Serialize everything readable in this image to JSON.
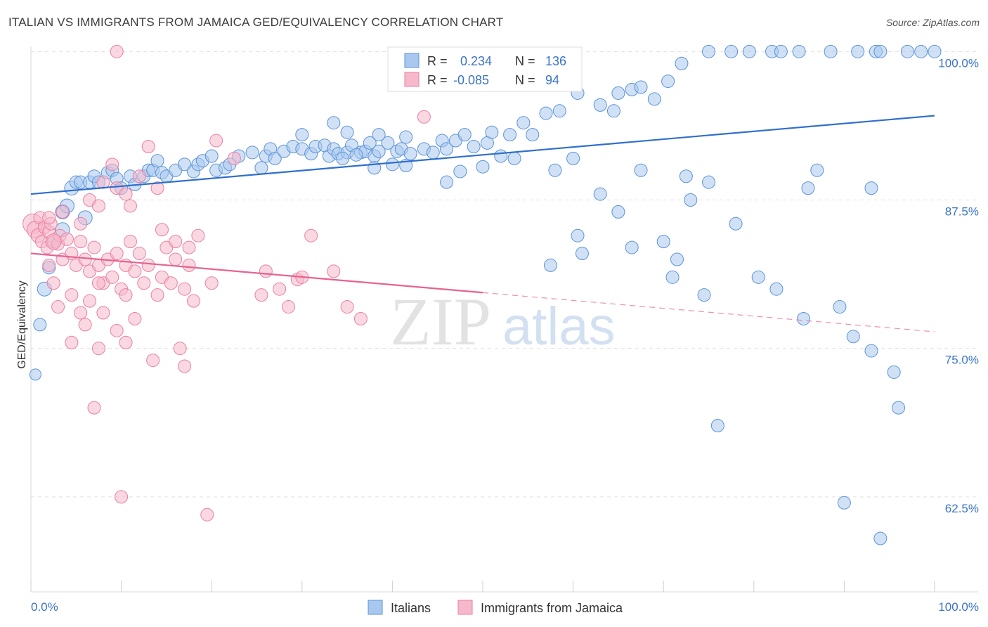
{
  "title": "ITALIAN VS IMMIGRANTS FROM JAMAICA GED/EQUIVALENCY CORRELATION CHART",
  "source": "Source: ZipAtlas.com",
  "watermark": {
    "zip": "ZIP",
    "atlas": "atlas"
  },
  "colors": {
    "blue_fill": "#a9c8ef",
    "blue_stroke": "#5b93d6",
    "blue_line": "#2f6fcd",
    "pink_fill": "#f6b8cb",
    "pink_stroke": "#ea7fa2",
    "pink_line": "#e8628f",
    "grid": "#e0e0e0",
    "axis_text": "#3b73c7"
  },
  "legend_box": {
    "rows": [
      {
        "r_label": "R =",
        "r_value": "0.234",
        "n_label": "N =",
        "n_value": "136"
      },
      {
        "r_label": "R =",
        "r_value": "-0.085",
        "n_label": "N =",
        "n_value": "94"
      }
    ]
  },
  "bottom_legend": [
    "Italians",
    "Immigrants from Jamaica"
  ],
  "chart_data": {
    "type": "scatter",
    "xlabel": "",
    "ylabel": "GED/Equivalency",
    "xlim": [
      0,
      100
    ],
    "ylim": [
      54.5,
      101.5
    ],
    "x_tick_labels": [
      "0.0%",
      "100.0%"
    ],
    "y_ticks": [
      100,
      87.5,
      75,
      62.5
    ],
    "y_tick_labels": [
      "100.0%",
      "87.5%",
      "75.0%",
      "62.5%"
    ],
    "grid": true,
    "legend_placement": "top-center",
    "series": [
      {
        "name": "Italians",
        "color": "blue",
        "r": 0.234,
        "n": 136,
        "trend": {
          "x": [
            0,
            100
          ],
          "y": [
            88.0,
            94.6
          ],
          "dashed_from": null
        },
        "points": [
          [
            0.5,
            72.8,
            8
          ],
          [
            1.0,
            77.0,
            9
          ],
          [
            1.5,
            80.0,
            10
          ],
          [
            2.0,
            81.8,
            9
          ],
          [
            2.5,
            84.0,
            9
          ],
          [
            3.5,
            85.0,
            10
          ],
          [
            3.5,
            86.5,
            10
          ],
          [
            4.0,
            87.0,
            10
          ],
          [
            6.0,
            86.0,
            10
          ],
          [
            4.5,
            88.5,
            10
          ],
          [
            5.0,
            89.0,
            9
          ],
          [
            5.5,
            89.0,
            9
          ],
          [
            6.5,
            89.0,
            9
          ],
          [
            7.0,
            89.5,
            9
          ],
          [
            7.5,
            89.0,
            9
          ],
          [
            8.5,
            89.8,
            9
          ],
          [
            9.0,
            90.0,
            9
          ],
          [
            9.5,
            89.3,
            9
          ],
          [
            10.0,
            88.5,
            9
          ],
          [
            11.0,
            89.5,
            9
          ],
          [
            11.5,
            88.8,
            9
          ],
          [
            12.5,
            89.5,
            9
          ],
          [
            13.0,
            90.0,
            9
          ],
          [
            13.5,
            90.0,
            9
          ],
          [
            14.0,
            90.8,
            9
          ],
          [
            14.5,
            89.8,
            9
          ],
          [
            15.0,
            89.5,
            9
          ],
          [
            16.0,
            90.0,
            9
          ],
          [
            17.0,
            90.5,
            9
          ],
          [
            18.0,
            89.9,
            9
          ],
          [
            18.5,
            90.5,
            9
          ],
          [
            19.0,
            90.8,
            9
          ],
          [
            20.0,
            91.2,
            9
          ],
          [
            20.5,
            90.0,
            9
          ],
          [
            21.5,
            90.2,
            9
          ],
          [
            22.0,
            90.5,
            9
          ],
          [
            23.0,
            91.2,
            9
          ],
          [
            24.5,
            91.5,
            9
          ],
          [
            25.5,
            90.2,
            9
          ],
          [
            26.0,
            91.2,
            9
          ],
          [
            26.5,
            91.8,
            9
          ],
          [
            27.0,
            91.0,
            9
          ],
          [
            28.0,
            91.6,
            9
          ],
          [
            29.0,
            92.0,
            9
          ],
          [
            30.0,
            91.8,
            9
          ],
          [
            31.0,
            91.4,
            9
          ],
          [
            31.5,
            92.0,
            9
          ],
          [
            32.5,
            92.1,
            9
          ],
          [
            33.0,
            91.2,
            9
          ],
          [
            33.5,
            91.8,
            9
          ],
          [
            34.0,
            91.4,
            9
          ],
          [
            35.0,
            91.5,
            9
          ],
          [
            35.5,
            92.1,
            9
          ],
          [
            36.5,
            91.5,
            9
          ],
          [
            37.0,
            91.6,
            9
          ],
          [
            37.5,
            92.3,
            9
          ],
          [
            38.0,
            91.2,
            9
          ],
          [
            38.5,
            91.6,
            9
          ],
          [
            39.5,
            92.3,
            9
          ],
          [
            40.5,
            91.6,
            9
          ],
          [
            41.0,
            91.8,
            9
          ],
          [
            42.0,
            91.4,
            9
          ],
          [
            43.5,
            91.8,
            9
          ],
          [
            44.5,
            91.5,
            9
          ],
          [
            45.5,
            92.5,
            9
          ],
          [
            46.0,
            91.8,
            9
          ],
          [
            47.0,
            92.5,
            9
          ],
          [
            48.0,
            93.0,
            9
          ],
          [
            49.0,
            92.0,
            9
          ],
          [
            50.5,
            92.3,
            9
          ],
          [
            51.0,
            93.2,
            9
          ],
          [
            53.0,
            93.0,
            9
          ],
          [
            54.5,
            94.0,
            9
          ],
          [
            55.5,
            93.0,
            9
          ],
          [
            57.0,
            94.8,
            9
          ],
          [
            58.5,
            95.0,
            9
          ],
          [
            60.5,
            96.5,
            9
          ],
          [
            63.0,
            95.5,
            9
          ],
          [
            64.5,
            95.0,
            9
          ],
          [
            65.0,
            96.5,
            9
          ],
          [
            66.5,
            96.8,
            9
          ],
          [
            67.5,
            97.0,
            9
          ],
          [
            69.0,
            96.0,
            9
          ],
          [
            70.5,
            97.5,
            9
          ],
          [
            72.0,
            99.0,
            9
          ],
          [
            75.0,
            100.0,
            9
          ],
          [
            77.5,
            100.0,
            9
          ],
          [
            79.5,
            100.0,
            9
          ],
          [
            82.0,
            100.0,
            9
          ],
          [
            83.0,
            100.0,
            9
          ],
          [
            85.0,
            100.0,
            9
          ],
          [
            88.5,
            100.0,
            9
          ],
          [
            91.5,
            100.0,
            9
          ],
          [
            93.5,
            100.0,
            9
          ],
          [
            94.0,
            100.0,
            9
          ],
          [
            97.0,
            100.0,
            9
          ],
          [
            98.5,
            100.0,
            9
          ],
          [
            100.0,
            100.0,
            9
          ],
          [
            30.0,
            93.0,
            9
          ],
          [
            33.5,
            94.0,
            9
          ],
          [
            35.0,
            93.2,
            9
          ],
          [
            38.5,
            93.0,
            9
          ],
          [
            41.5,
            92.8,
            9
          ],
          [
            34.5,
            91.0,
            9
          ],
          [
            36.0,
            91.3,
            9
          ],
          [
            38.0,
            90.2,
            9
          ],
          [
            40.0,
            90.5,
            9
          ],
          [
            41.5,
            90.4,
            9
          ],
          [
            46.0,
            89.0,
            9
          ],
          [
            47.5,
            89.9,
            9
          ],
          [
            50.0,
            90.3,
            9
          ],
          [
            52.0,
            91.2,
            9
          ],
          [
            53.5,
            91.0,
            9
          ],
          [
            58.0,
            90.0,
            9
          ],
          [
            60.0,
            91.0,
            9
          ],
          [
            63.0,
            88.0,
            9
          ],
          [
            67.5,
            90.0,
            9
          ],
          [
            75.0,
            89.0,
            9
          ],
          [
            72.5,
            89.5,
            9
          ],
          [
            87.0,
            90.0,
            9
          ],
          [
            86.0,
            88.5,
            9
          ],
          [
            93.0,
            88.5,
            9
          ],
          [
            78.0,
            85.5,
            9
          ],
          [
            73.0,
            87.5,
            9
          ],
          [
            65.0,
            86.5,
            9
          ],
          [
            70.0,
            84.0,
            9
          ],
          [
            71.5,
            82.5,
            9
          ],
          [
            74.5,
            79.5,
            9
          ],
          [
            60.5,
            84.5,
            9
          ],
          [
            61.0,
            83.0,
            9
          ],
          [
            57.5,
            82.0,
            9
          ],
          [
            71.0,
            81.0,
            9
          ],
          [
            66.5,
            83.5,
            9
          ],
          [
            80.5,
            81.0,
            9
          ],
          [
            82.5,
            80.0,
            9
          ],
          [
            85.5,
            77.5,
            9
          ],
          [
            89.5,
            78.5,
            9
          ],
          [
            91.0,
            76.0,
            9
          ],
          [
            93.0,
            74.8,
            9
          ],
          [
            95.5,
            73.0,
            9
          ],
          [
            96.0,
            70.0,
            9
          ],
          [
            76.0,
            68.5,
            9
          ],
          [
            90.0,
            62.0,
            9
          ],
          [
            94.0,
            59.0,
            9
          ]
        ]
      },
      {
        "name": "Immigrants from Jamaica",
        "color": "pink",
        "r": -0.085,
        "n": 94,
        "trend": {
          "x": [
            0,
            100
          ],
          "y": [
            83.0,
            76.4
          ],
          "dashed_from": 50
        },
        "points": [
          [
            0.2,
            85.5,
            14
          ],
          [
            0.5,
            85.0,
            12
          ],
          [
            0.8,
            84.5,
            10
          ],
          [
            1.0,
            86.0,
            9
          ],
          [
            1.2,
            84.0,
            9
          ],
          [
            1.5,
            85.2,
            9
          ],
          [
            1.8,
            83.5,
            9
          ],
          [
            2.0,
            84.8,
            9
          ],
          [
            2.2,
            85.5,
            9
          ],
          [
            2.5,
            84.0,
            9
          ],
          [
            3.0,
            83.8,
            9
          ],
          [
            3.2,
            84.5,
            9
          ],
          [
            3.5,
            82.5,
            9
          ],
          [
            4.0,
            84.2,
            9
          ],
          [
            4.5,
            83.0,
            9
          ],
          [
            5.0,
            82.0,
            9
          ],
          [
            5.5,
            84.0,
            9
          ],
          [
            6.0,
            82.5,
            9
          ],
          [
            6.5,
            81.5,
            9
          ],
          [
            7.0,
            83.5,
            9
          ],
          [
            7.5,
            82.0,
            9
          ],
          [
            8.0,
            80.5,
            9
          ],
          [
            8.5,
            82.5,
            9
          ],
          [
            9.0,
            81.0,
            9
          ],
          [
            9.5,
            83.0,
            9
          ],
          [
            10.0,
            80.0,
            9
          ],
          [
            10.5,
            82.0,
            9
          ],
          [
            11.0,
            84.0,
            9
          ],
          [
            11.5,
            81.5,
            9
          ],
          [
            12.0,
            83.0,
            9
          ],
          [
            12.5,
            80.5,
            9
          ],
          [
            13.0,
            82.0,
            9
          ],
          [
            14.0,
            79.5,
            9
          ],
          [
            14.5,
            81.0,
            9
          ],
          [
            15.0,
            83.5,
            9
          ],
          [
            15.5,
            80.5,
            9
          ],
          [
            16.0,
            82.5,
            9
          ],
          [
            17.0,
            80.0,
            9
          ],
          [
            17.5,
            82.0,
            9
          ],
          [
            18.0,
            79.0,
            9
          ],
          [
            2.0,
            82.0,
            9
          ],
          [
            2.5,
            80.5,
            9
          ],
          [
            3.0,
            78.5,
            9
          ],
          [
            4.5,
            79.5,
            9
          ],
          [
            5.5,
            78.0,
            9
          ],
          [
            6.0,
            77.0,
            9
          ],
          [
            6.5,
            79.0,
            9
          ],
          [
            7.5,
            80.5,
            9
          ],
          [
            8.0,
            78.0,
            9
          ],
          [
            9.5,
            76.5,
            9
          ],
          [
            10.5,
            79.5,
            9
          ],
          [
            11.5,
            77.5,
            9
          ],
          [
            4.5,
            75.5,
            9
          ],
          [
            7.5,
            75.0,
            9
          ],
          [
            10.5,
            75.5,
            9
          ],
          [
            13.5,
            74.0,
            9
          ],
          [
            16.5,
            75.0,
            9
          ],
          [
            17.0,
            73.5,
            9
          ],
          [
            7.0,
            70.0,
            9
          ],
          [
            10.0,
            62.5,
            9
          ],
          [
            19.5,
            61.0,
            9
          ],
          [
            2.0,
            86.0,
            9
          ],
          [
            3.5,
            86.5,
            9
          ],
          [
            5.5,
            85.5,
            9
          ],
          [
            6.5,
            87.5,
            9
          ],
          [
            7.5,
            87.0,
            9
          ],
          [
            8.0,
            89.0,
            9
          ],
          [
            9.0,
            90.5,
            9
          ],
          [
            9.5,
            88.5,
            9
          ],
          [
            10.5,
            88.0,
            9
          ],
          [
            11.0,
            87.0,
            9
          ],
          [
            12.0,
            89.5,
            9
          ],
          [
            13.0,
            92.0,
            9
          ],
          [
            14.0,
            88.5,
            9
          ],
          [
            14.5,
            85.0,
            9
          ],
          [
            16.0,
            84.0,
            9
          ],
          [
            17.5,
            83.5,
            9
          ],
          [
            18.5,
            84.5,
            9
          ],
          [
            20.0,
            80.5,
            9
          ],
          [
            20.5,
            92.5,
            9
          ],
          [
            22.5,
            91.0,
            9
          ],
          [
            25.5,
            79.5,
            9
          ],
          [
            26.0,
            81.5,
            9
          ],
          [
            27.5,
            80.0,
            9
          ],
          [
            28.5,
            78.5,
            9
          ],
          [
            29.5,
            80.8,
            9
          ],
          [
            30.0,
            81.0,
            9
          ],
          [
            31.0,
            84.5,
            9
          ],
          [
            33.5,
            81.5,
            9
          ],
          [
            35.0,
            78.5,
            9
          ],
          [
            36.5,
            77.5,
            9
          ],
          [
            43.5,
            94.5,
            9
          ],
          [
            9.5,
            100.0,
            9
          ],
          [
            2.5,
            84.0,
            11
          ]
        ]
      }
    ]
  }
}
